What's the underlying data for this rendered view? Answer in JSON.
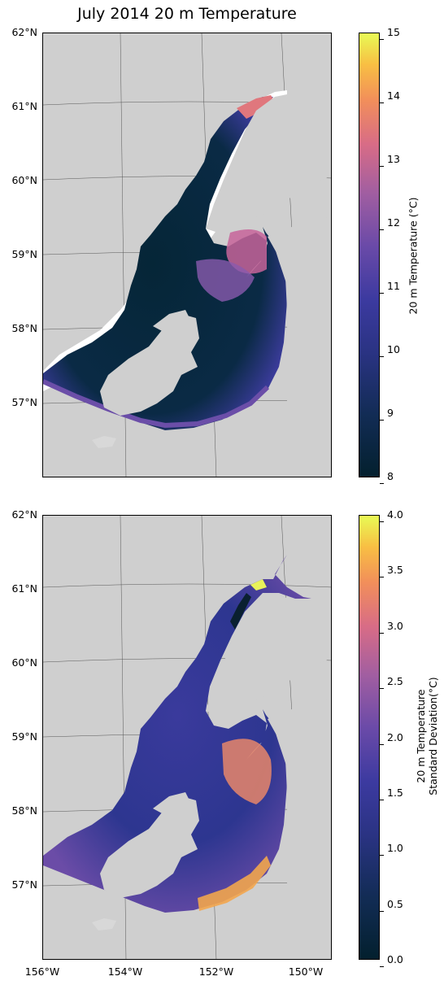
{
  "title": "July 2014 20 m Temperature",
  "latitude_labels": [
    "62°N",
    "61°N",
    "60°N",
    "59°N",
    "58°N",
    "57°N"
  ],
  "longitude_labels": [
    "156°W",
    "154°W",
    "152°W",
    "150°W"
  ],
  "colors": {
    "land": "#cfcfcf",
    "frame": "#000000"
  },
  "panels": [
    {
      "name": "temperature",
      "colorbar_label": "20 m Temperature (°C)",
      "colorbar_ticks": [
        "8",
        "9",
        "10",
        "11",
        "12",
        "13",
        "14",
        "15"
      ],
      "colorbar_range": [
        8,
        15
      ],
      "colormap": "thermal"
    },
    {
      "name": "standard-deviation",
      "colorbar_label_line1": "20 m Temperature",
      "colorbar_label_line2": "Standard Deviation(°C)",
      "colorbar_ticks": [
        "0.0",
        "0.5",
        "1.0",
        "1.5",
        "2.0",
        "2.5",
        "3.0",
        "3.5",
        "4.0"
      ],
      "colorbar_range": [
        0,
        4
      ],
      "colormap": "thermal"
    }
  ]
}
